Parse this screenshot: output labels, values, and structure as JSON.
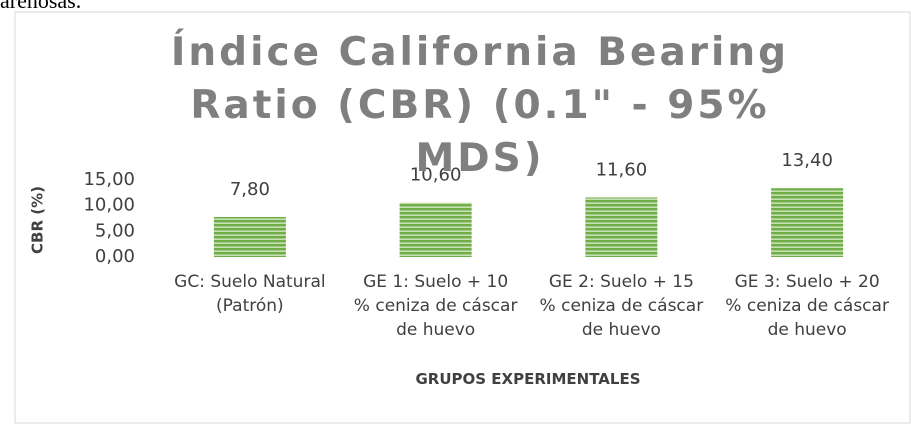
{
  "page_text": "arenosas.",
  "chart_data": {
    "type": "bar",
    "title": "Índice California Bearing Ratio (CBR) (0.1\" - 95% MDS)",
    "categories": [
      "GC: Suelo Natural (Patrón)",
      "GE 1: Suelo + 10 % ceniza de cáscar de huevo",
      "GE 2: Suelo + 15 % ceniza de cáscar de huevo",
      "GE 3: Suelo + 20 % ceniza de cáscar de huevo"
    ],
    "values": [
      7.8,
      10.6,
      11.6,
      13.4
    ],
    "value_labels": [
      "7,80",
      "10,60",
      "11,60",
      "13,40"
    ],
    "color": "#70ad47",
    "ylim": [
      0,
      15
    ],
    "yticks": [
      {
        "value": 0,
        "label": "0,00"
      },
      {
        "value": 5,
        "label": "5,00"
      },
      {
        "value": 10,
        "label": "10,00"
      },
      {
        "value": 15,
        "label": "15,00"
      }
    ],
    "xlabel": "GRUPOS EXPERIMENTALES",
    "ylabel": "CBR (%)",
    "grid": false
  }
}
